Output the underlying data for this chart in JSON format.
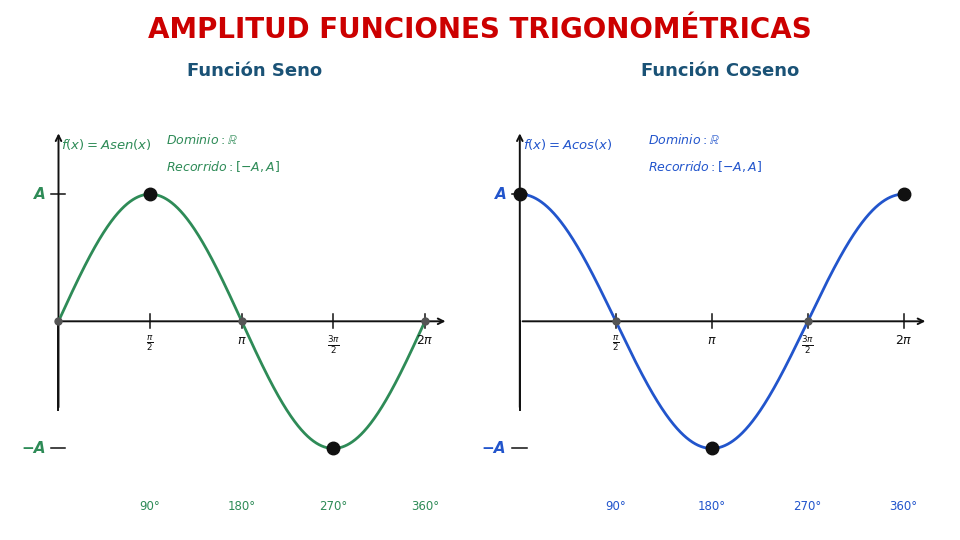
{
  "title": "AMPLITUD FUNCIONES TRIGONOMÉTRICAS",
  "title_color": "#CC0000",
  "title_fontsize": 20,
  "sine_subtitle": "Función Seno",
  "cosine_subtitle": "Función Coseno",
  "subtitle_color": "#1a5276",
  "subtitle_fontsize": 13,
  "sine_color": "#2e8b57",
  "cosine_color": "#2255cc",
  "bg_color": "#ffffff",
  "dot_color": "#111111",
  "dot_size_large": 9,
  "dot_size_small": 5,
  "axis_color": "#111111",
  "label_A": "A",
  "label_negA": "−A",
  "deg_labels": [
    "90°",
    "180°",
    "270°",
    "360°"
  ],
  "formula_color_sin": "#2e8b57",
  "formula_color_cos": "#2255cc",
  "domain_color_sin": "#2e8b57",
  "domain_color_cos": "#2255cc"
}
